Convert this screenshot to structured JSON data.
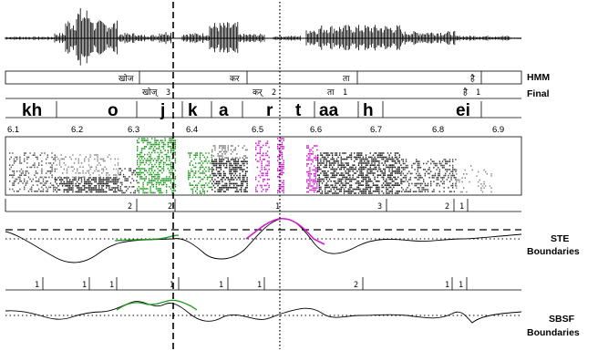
{
  "side_labels": {
    "hmm": "HMM",
    "final": "Final",
    "ste_1": "STE",
    "ste_2": "Boundaries",
    "sbsf_1": "SBSF",
    "sbsf_2": "Boundaries"
  },
  "hmm_row": [
    {
      "text": "खोज",
      "tier": "hmm"
    },
    {
      "text": "कर",
      "tier": "hmm"
    },
    {
      "text": "ता",
      "tier": "hmm"
    },
    {
      "text": "है",
      "tier": "hmm"
    }
  ],
  "final_row": [
    {
      "text": "खोज्",
      "num": "3"
    },
    {
      "text": "कर्",
      "num": "2"
    },
    {
      "text": "ता",
      "num": "1"
    },
    {
      "text": "है",
      "num": "1"
    }
  ],
  "phonemes": [
    "kh",
    "o",
    "j",
    "k",
    "a",
    "r",
    "t",
    "aa",
    "h",
    "ei"
  ],
  "time_ticks": [
    "6.1",
    "6.2",
    "6.3",
    "6.4",
    "6.5",
    "6.6",
    "6.7",
    "6.8",
    "6.9"
  ],
  "ste_tier_numbers": [
    "2",
    "2",
    "1",
    "3",
    "2",
    "1"
  ],
  "sbsf_tier_numbers": [
    "1",
    "1",
    "1",
    "1",
    "1",
    "1",
    "2",
    "1",
    "1"
  ],
  "colors": {
    "line": "#000000",
    "green": "#1e9a1e",
    "magenta": "#d21ad2",
    "spectrogram_bg": "#ffffff"
  }
}
